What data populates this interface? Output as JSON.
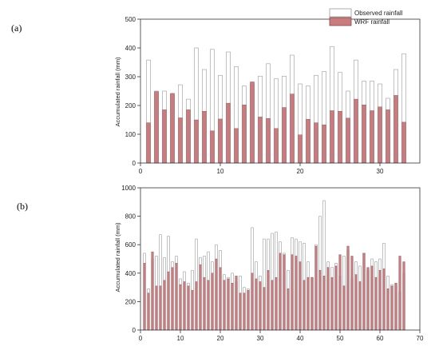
{
  "colors": {
    "observed_fill": "#ffffff",
    "observed_stroke": "#999999",
    "wrf_fill": "#c97b7e",
    "wrf_stroke": "#8c4a4d",
    "axis": "#333333"
  },
  "chart_data": [
    {
      "type": "bar",
      "panel_label": "(a)",
      "ylabel": "Accumulated rainfall (mm)",
      "xlabel": "",
      "xlim": [
        0,
        35
      ],
      "ylim": [
        0,
        500
      ],
      "xticks": [
        0,
        10,
        20,
        30
      ],
      "yticks": [
        0,
        100,
        200,
        300,
        400,
        500
      ],
      "legend": {
        "placement": "top-right",
        "entries": [
          "Observed rainfall",
          "WRF rainfall"
        ]
      },
      "x": [
        1,
        2,
        3,
        4,
        5,
        6,
        7,
        8,
        9,
        10,
        11,
        12,
        13,
        14,
        15,
        16,
        17,
        18,
        19,
        20,
        21,
        22,
        23,
        24,
        25,
        26,
        27,
        28,
        29,
        30,
        31,
        32,
        33
      ],
      "series": [
        {
          "name": "Observed rainfall",
          "values": [
            358,
            250,
            250,
            240,
            272,
            222,
            400,
            325,
            395,
            305,
            386,
            335,
            268,
            275,
            302,
            345,
            293,
            302,
            375,
            275,
            268,
            305,
            318,
            405,
            315,
            250,
            358,
            285,
            285,
            275,
            225,
            325,
            380
          ]
        },
        {
          "name": "WRF rainfall",
          "values": [
            140,
            248,
            185,
            242,
            157,
            185,
            150,
            180,
            112,
            153,
            208,
            120,
            202,
            282,
            160,
            155,
            120,
            193,
            240,
            98,
            152,
            140,
            133,
            182,
            180,
            156,
            222,
            202,
            182,
            195,
            185,
            235,
            142
          ]
        }
      ]
    },
    {
      "type": "bar",
      "panel_label": "(b)",
      "ylabel": "Accumulated rainfall (mm)",
      "xlabel": "",
      "xlim": [
        0,
        70
      ],
      "ylim": [
        0,
        1000
      ],
      "xticks": [
        0,
        10,
        20,
        30,
        40,
        50,
        60,
        70
      ],
      "yticks": [
        0,
        200,
        400,
        600,
        800,
        1000
      ],
      "legend": null,
      "x": [
        1,
        2,
        3,
        4,
        5,
        6,
        7,
        8,
        9,
        10,
        11,
        12,
        13,
        14,
        15,
        16,
        17,
        18,
        19,
        20,
        21,
        22,
        23,
        24,
        25,
        26,
        27,
        28,
        29,
        30,
        31,
        32,
        33,
        34,
        35,
        36,
        37,
        38,
        39,
        40,
        41,
        42,
        43,
        44,
        45,
        46,
        47,
        48,
        49,
        50,
        51,
        52,
        53,
        54,
        55,
        56,
        57,
        58,
        59,
        60,
        61,
        62,
        63,
        64,
        65,
        66
      ],
      "series": [
        {
          "name": "Observed rainfall",
          "values": [
            540,
            290,
            500,
            520,
            670,
            510,
            660,
            480,
            520,
            360,
            410,
            330,
            420,
            640,
            510,
            520,
            550,
            480,
            600,
            560,
            390,
            370,
            400,
            340,
            380,
            300,
            290,
            720,
            480,
            380,
            640,
            640,
            680,
            690,
            620,
            540,
            420,
            650,
            640,
            620,
            610,
            480,
            370,
            600,
            800,
            910,
            480,
            440,
            470,
            380,
            520,
            560,
            360,
            480,
            450,
            540,
            420,
            500,
            480,
            500,
            610,
            380,
            320,
            320,
            270,
            400
          ]
        },
        {
          "name": "WRF rainfall",
          "values": [
            470,
            260,
            550,
            310,
            310,
            350,
            410,
            440,
            470,
            320,
            340,
            310,
            280,
            340,
            460,
            370,
            350,
            400,
            500,
            440,
            350,
            360,
            330,
            380,
            260,
            260,
            280,
            400,
            360,
            340,
            300,
            420,
            350,
            370,
            540,
            530,
            290,
            530,
            520,
            480,
            350,
            370,
            370,
            590,
            420,
            380,
            440,
            370,
            450,
            530,
            310,
            590,
            520,
            390,
            340,
            540,
            440,
            450,
            370,
            420,
            430,
            290,
            310,
            330,
            520,
            480
          ]
        }
      ]
    }
  ]
}
